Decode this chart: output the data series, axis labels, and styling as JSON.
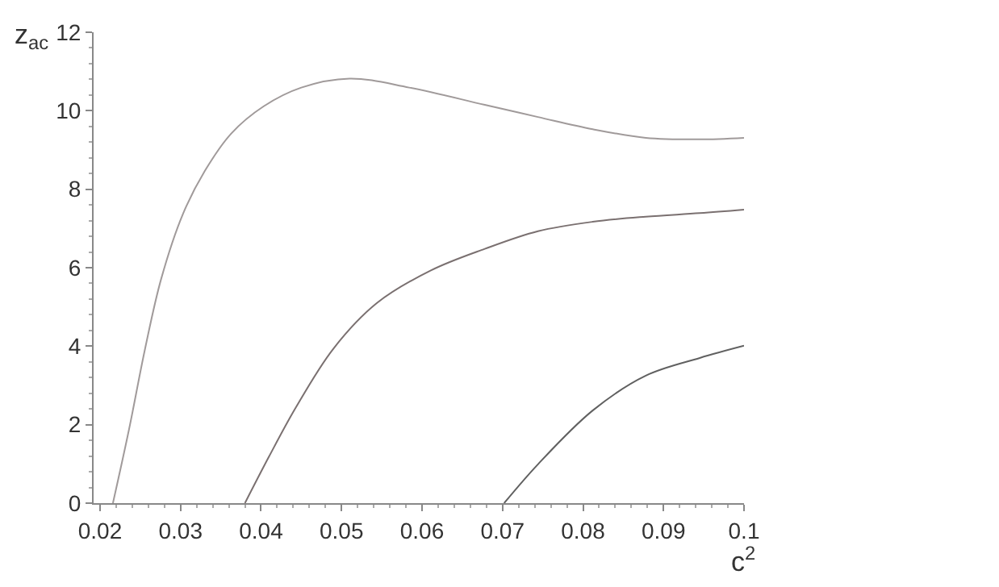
{
  "chart_data": {
    "type": "line",
    "xlabel": "c$^{2}$",
    "ylabel": "z$_{ac}$",
    "xlim": [
      0.0192,
      0.1
    ],
    "xticks": [
      0.02,
      0.03,
      0.04,
      0.05,
      0.06,
      0.07,
      0.08,
      0.09,
      {
        "value": 0.1,
        "label": "0.1"
      }
    ],
    "ylim": [
      0,
      12
    ],
    "yticks": [
      0,
      2,
      4,
      6,
      8,
      10,
      12
    ],
    "marker": "none",
    "line_style": "solid",
    "series": [
      {
        "color": "#a09a9a",
        "x": [
          0.0216,
          0.0236,
          0.0256,
          0.0276,
          0.0303,
          0.033,
          0.0363,
          0.0403,
          0.045,
          0.051,
          0.0584,
          0.0678,
          0.0744,
          0.0812,
          0.0878,
          0.0945,
          0.1
        ],
        "values": [
          0,
          1.88,
          3.94,
          5.72,
          7.37,
          8.46,
          9.42,
          10.11,
          10.59,
          10.82,
          10.59,
          10.15,
          9.84,
          9.53,
          9.31,
          9.27,
          9.31
        ]
      },
      {
        "color": "#7a7070",
        "x": [
          0.038,
          0.041,
          0.0443,
          0.049,
          0.0544,
          0.0611,
          0.0678,
          0.0744,
          0.0812,
          0.0878,
          0.0945,
          0.1
        ],
        "values": [
          0,
          1.19,
          2.43,
          3.94,
          5.1,
          5.93,
          6.48,
          6.93,
          7.17,
          7.3,
          7.39,
          7.48
        ]
      },
      {
        "color": "#606060",
        "x": [
          0.0702,
          0.0744,
          0.0812,
          0.0878,
          0.0945,
          0.1
        ],
        "values": [
          0,
          0.99,
          2.36,
          3.25,
          3.7,
          4.01
        ]
      }
    ]
  }
}
